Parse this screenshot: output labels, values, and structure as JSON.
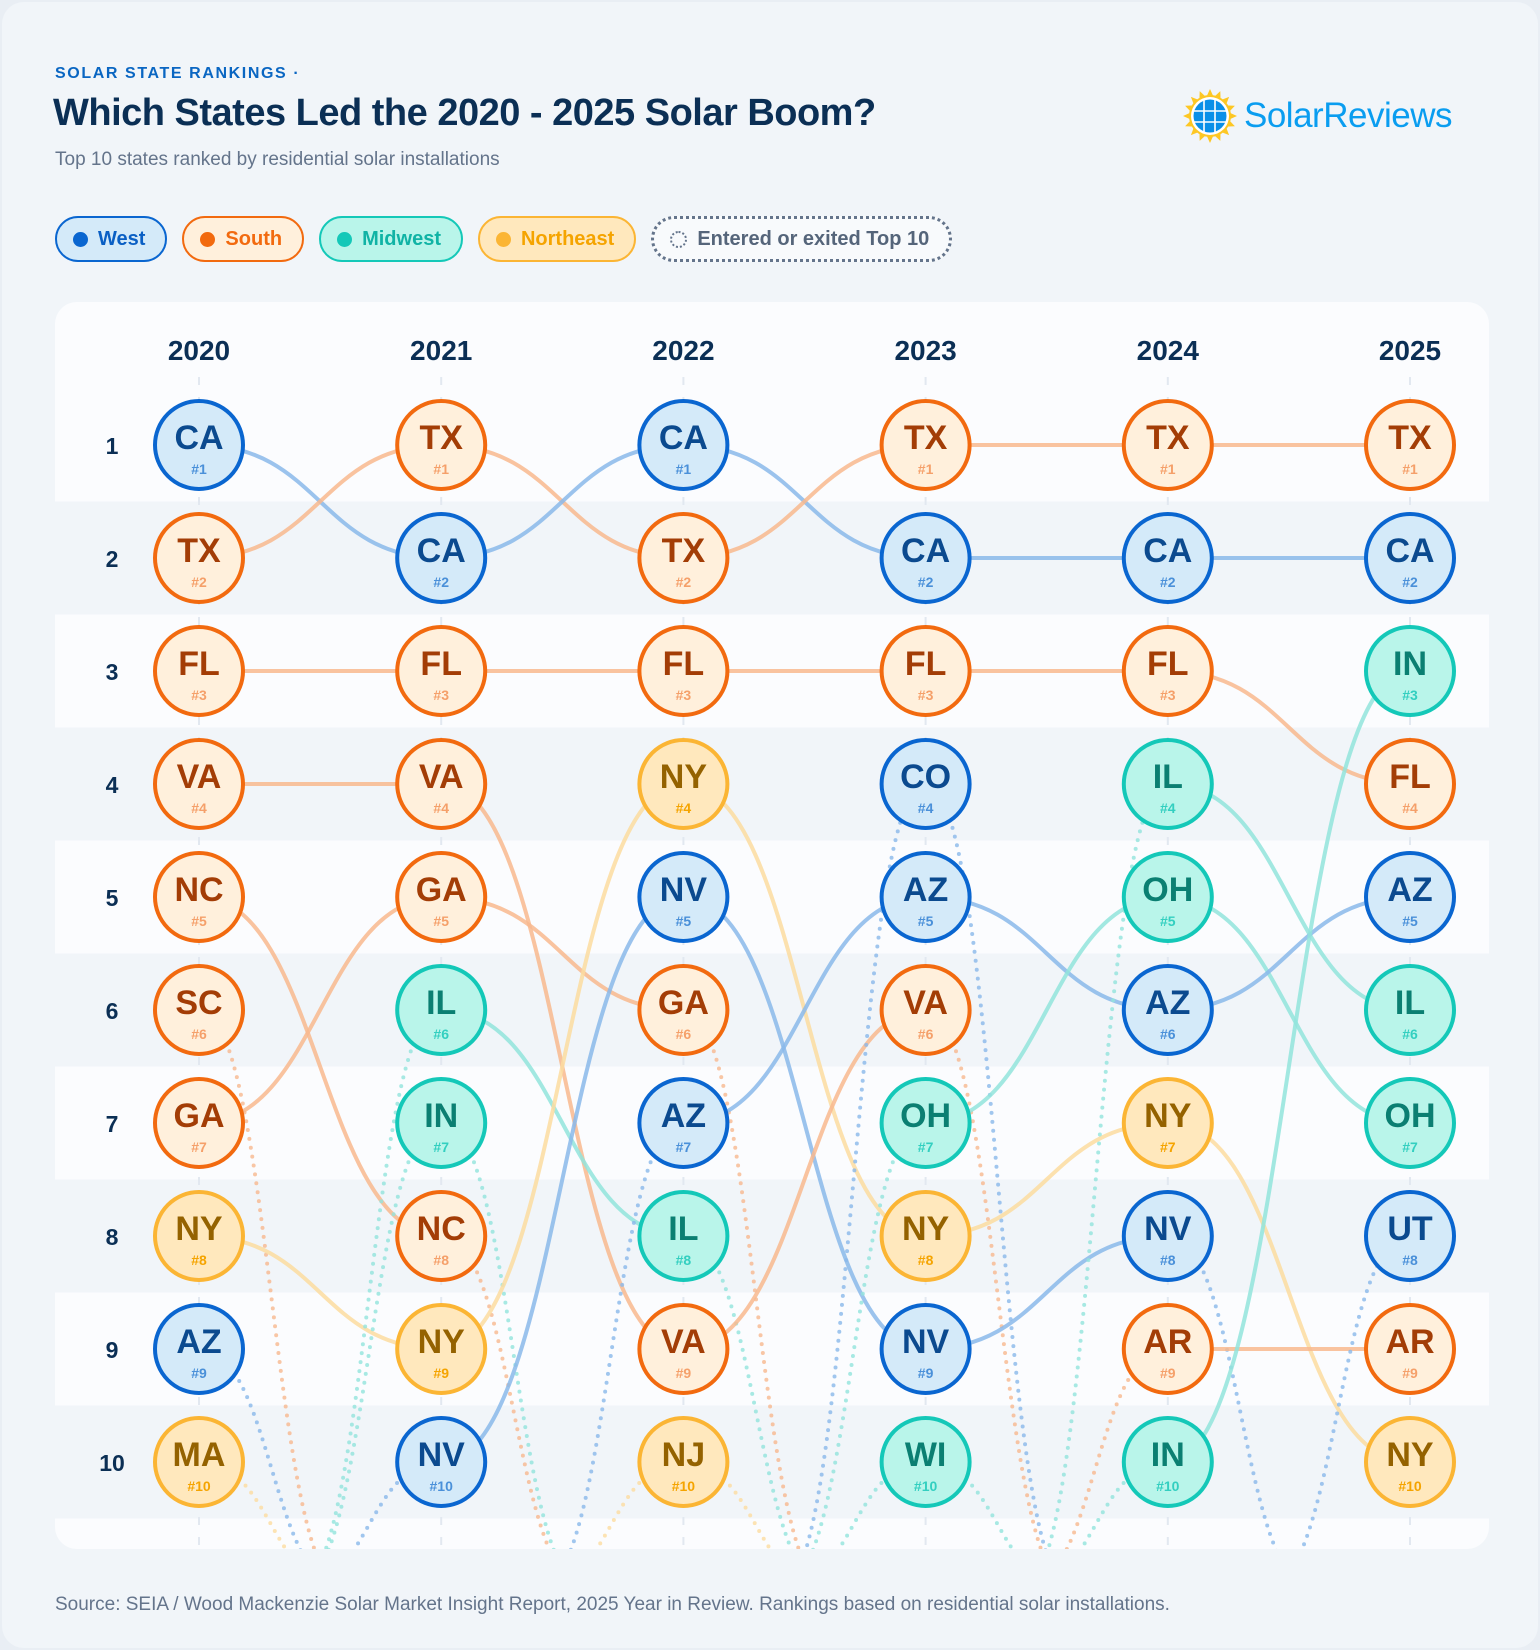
{
  "header": {
    "eyebrow": "SOLAR STATE RANKINGS ·",
    "title": "Which States Led the 2020 - 2025 Solar Boom?",
    "subtitle": "Top 10 states ranked by residential solar installations",
    "logo_text": "SolarReviews"
  },
  "legend": [
    {
      "label": "West",
      "color": "#0a66d0",
      "bg": "#d4eaf9",
      "text": "#0a5fc4"
    },
    {
      "label": "South",
      "color": "#f26a0f",
      "bg": "#fff0dc",
      "text": "#f26a0f"
    },
    {
      "label": "Midwest",
      "color": "#14c8b8",
      "bg": "#b9f5ea",
      "text": "#10b3a5"
    },
    {
      "label": "Northeast",
      "color": "#fbb534",
      "bg": "#ffe8bd",
      "text": "#f5a400"
    }
  ],
  "legend_entry_exit": "Entered or exited Top 10",
  "regions": {
    "West": {
      "stroke": "#0a66d0",
      "fill": "#d4eaf9",
      "text": "#0b4a8f",
      "num": "#4a90d9",
      "line": "#8ab8ea"
    },
    "South": {
      "stroke": "#f26a0f",
      "fill": "#fff0dc",
      "text": "#a33d06",
      "num": "#f5a06a",
      "line": "#f8b88e"
    },
    "Midwest": {
      "stroke": "#14c8b8",
      "fill": "#b9f5ea",
      "text": "#0b7f72",
      "num": "#33cfc0",
      "line": "#92e4dc"
    },
    "Northeast": {
      "stroke": "#fbb534",
      "fill": "#ffe8bd",
      "text": "#946200",
      "num": "#f5a400",
      "line": "#fcdca0"
    }
  },
  "chart_data": {
    "type": "bump",
    "years": [
      "2020",
      "2021",
      "2022",
      "2023",
      "2024",
      "2025"
    ],
    "rank_labels": [
      "1",
      "2",
      "3",
      "4",
      "5",
      "6",
      "7",
      "8",
      "9",
      "10"
    ],
    "state_regions": {
      "CA": "West",
      "AZ": "West",
      "NV": "West",
      "CO": "West",
      "UT": "West",
      "TX": "South",
      "FL": "South",
      "VA": "South",
      "NC": "South",
      "SC": "South",
      "GA": "South",
      "AR": "South",
      "IL": "Midwest",
      "IN": "Midwest",
      "OH": "Midwest",
      "WI": "Midwest",
      "NY": "Northeast",
      "MA": "Northeast",
      "NJ": "Northeast"
    },
    "rankings": {
      "2020": [
        "CA",
        "TX",
        "FL",
        "VA",
        "NC",
        "SC",
        "GA",
        "NY",
        "AZ",
        "MA"
      ],
      "2021": [
        "TX",
        "CA",
        "FL",
        "VA",
        "GA",
        "IL",
        "IN",
        "NC",
        "NY",
        "NV"
      ],
      "2022": [
        "CA",
        "TX",
        "FL",
        "NY",
        "NV",
        "GA",
        "AZ",
        "IL",
        "VA",
        "NJ"
      ],
      "2023": [
        "TX",
        "CA",
        "FL",
        "CO",
        "AZ",
        "VA",
        "OH",
        "NY",
        "NV",
        "WI"
      ],
      "2024": [
        "TX",
        "CA",
        "FL",
        "IL",
        "OH",
        "AZ",
        "NY",
        "NV",
        "AR",
        "IN"
      ],
      "2025": [
        "TX",
        "CA",
        "IN",
        "FL",
        "AZ",
        "IL",
        "OH",
        "UT",
        "AR",
        "NY"
      ]
    }
  },
  "footer": "Source: SEIA / Wood Mackenzie Solar Market Insight Report, 2025 Year in Review. Rankings based on residential solar installations."
}
